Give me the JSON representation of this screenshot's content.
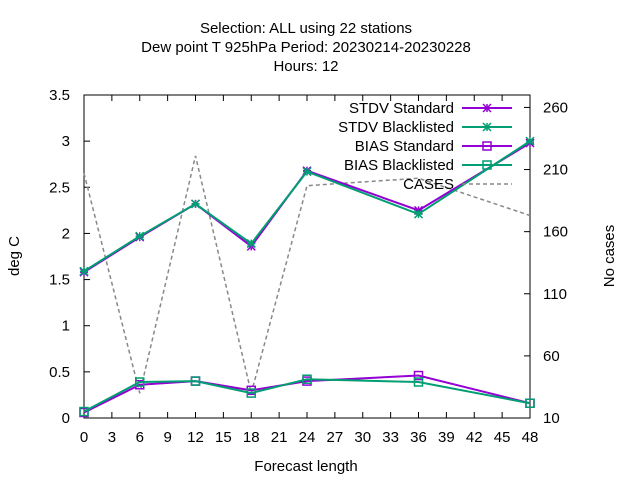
{
  "chart_data": {
    "type": "line",
    "title_lines": [
      "Selection: ALL using     22 stations",
      "Dew point T 925hPa   Period: 20230214-20230228",
      "Hours:  12"
    ],
    "xlabel": "Forecast length",
    "ylabel": "deg C",
    "y2label": "No cases",
    "xlim": [
      0,
      48
    ],
    "ylim": [
      0,
      3.5
    ],
    "y2lim": [
      10,
      270
    ],
    "xticks": [
      "0",
      "3",
      "6",
      "9",
      "12",
      "15",
      "18",
      "21",
      "24",
      "27",
      "30",
      "33",
      "36",
      "39",
      "42",
      "45",
      "48"
    ],
    "yticks": [
      "0",
      "0.5",
      "1",
      "1.5",
      "2",
      "2.5",
      "3",
      "3.5"
    ],
    "y2ticks": [
      "10",
      "60",
      "110",
      "160",
      "210",
      "260"
    ],
    "grid": false,
    "legend_position": "top-right",
    "series": [
      {
        "name": "STDV Standard",
        "axis": "y1",
        "color": "#9400d3",
        "marker": "x-star",
        "x": [
          0,
          6,
          12,
          18,
          24,
          36,
          48
        ],
        "values": [
          1.58,
          1.96,
          2.32,
          1.86,
          2.68,
          2.25,
          2.98
        ]
      },
      {
        "name": "STDV Blacklisted",
        "axis": "y1",
        "color": "#009e73",
        "marker": "x-star",
        "x": [
          0,
          6,
          12,
          18,
          24,
          36,
          48
        ],
        "values": [
          1.59,
          1.97,
          2.32,
          1.89,
          2.67,
          2.21,
          3.0
        ]
      },
      {
        "name": "BIAS Standard",
        "axis": "y1",
        "color": "#9400d3",
        "marker": "open-square",
        "x": [
          0,
          6,
          12,
          18,
          24,
          36,
          48
        ],
        "values": [
          0.06,
          0.36,
          0.4,
          0.3,
          0.4,
          0.46,
          0.16
        ]
      },
      {
        "name": "BIAS Blacklisted",
        "axis": "y1",
        "color": "#009e73",
        "marker": "open-square",
        "x": [
          0,
          6,
          12,
          18,
          24,
          36,
          48
        ],
        "values": [
          0.07,
          0.39,
          0.4,
          0.27,
          0.42,
          0.39,
          0.16
        ]
      },
      {
        "name": "CASES",
        "axis": "y2",
        "color": "#888888",
        "style": "dashed",
        "x": [
          0,
          6,
          12,
          18,
          24,
          36,
          48
        ],
        "values": [
          207,
          30,
          221,
          30,
          197,
          203,
          173
        ]
      }
    ]
  }
}
